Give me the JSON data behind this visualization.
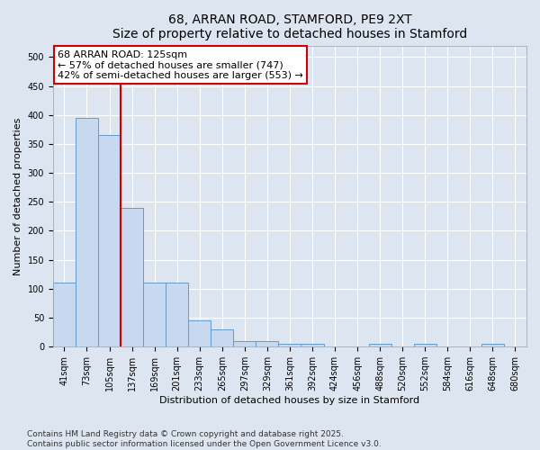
{
  "title_line1": "68, ARRAN ROAD, STAMFORD, PE9 2XT",
  "title_line2": "Size of property relative to detached houses in Stamford",
  "xlabel": "Distribution of detached houses by size in Stamford",
  "ylabel": "Number of detached properties",
  "categories": [
    "41sqm",
    "73sqm",
    "105sqm",
    "137sqm",
    "169sqm",
    "201sqm",
    "233sqm",
    "265sqm",
    "297sqm",
    "329sqm",
    "361sqm",
    "392sqm",
    "424sqm",
    "456sqm",
    "488sqm",
    "520sqm",
    "552sqm",
    "584sqm",
    "616sqm",
    "648sqm",
    "680sqm"
  ],
  "values": [
    110,
    395,
    365,
    240,
    110,
    110,
    45,
    30,
    10,
    10,
    5,
    5,
    0,
    0,
    5,
    0,
    5,
    0,
    0,
    5,
    0
  ],
  "bar_color": "#c8d8ef",
  "bar_edge_color": "#6699cc",
  "vline_color": "#cc0000",
  "annotation_line1": "68 ARRAN ROAD: 125sqm",
  "annotation_line2": "← 57% of detached houses are smaller (747)",
  "annotation_line3": "42% of semi-detached houses are larger (553) →",
  "annotation_box_facecolor": "#ffffff",
  "annotation_box_edgecolor": "#cc0000",
  "ylim": [
    0,
    520
  ],
  "yticks": [
    0,
    50,
    100,
    150,
    200,
    250,
    300,
    350,
    400,
    450,
    500
  ],
  "background_color": "#dde6f0",
  "plot_background": "#dde6f0",
  "footer_text": "Contains HM Land Registry data © Crown copyright and database right 2025.\nContains public sector information licensed under the Open Government Licence v3.0.",
  "grid_color": "#ffffff",
  "title_fontsize": 10,
  "tick_fontsize": 7,
  "ylabel_fontsize": 8,
  "xlabel_fontsize": 8,
  "footer_fontsize": 6.5,
  "annotation_fontsize": 8
}
